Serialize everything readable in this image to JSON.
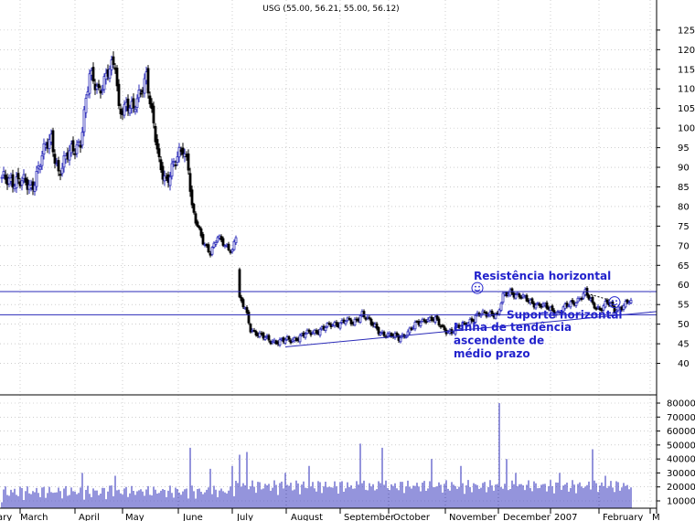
{
  "chart_data": {
    "type": "candlestick",
    "title": "USG (55.00, 56.21, 55.00, 56.12)",
    "colors": {
      "up": "#2a2ab8",
      "down": "#000000",
      "lines": "#2a2ab8",
      "annotations": "#2222cc",
      "grid": "#b0b0b0"
    },
    "grid": true,
    "price_axis": {
      "side": "right",
      "ylim": [
        35,
        128
      ],
      "ticks": [
        40,
        45,
        50,
        55,
        60,
        65,
        70,
        75,
        80,
        85,
        90,
        95,
        100,
        105,
        110,
        115,
        120,
        125
      ]
    },
    "volume_axis": {
      "side": "right",
      "ylim": [
        0,
        85000
      ],
      "ticks": [
        10000,
        20000,
        30000,
        40000,
        50000,
        60000,
        70000,
        80000
      ]
    },
    "x_axis": {
      "month_labels": [
        "ary",
        "March",
        "April",
        "May",
        "June",
        "July",
        "August",
        "September",
        "October",
        "November",
        "December",
        "2007",
        "February",
        "M"
      ]
    },
    "price_anchors": [
      {
        "d": 0,
        "p": 86.5
      },
      {
        "d": 8,
        "p": 87
      },
      {
        "d": 16,
        "p": 84.5
      },
      {
        "d": 22,
        "p": 93
      },
      {
        "d": 27,
        "p": 97
      },
      {
        "d": 31,
        "p": 89
      },
      {
        "d": 38,
        "p": 94
      },
      {
        "d": 43,
        "p": 97
      },
      {
        "d": 48,
        "p": 113
      },
      {
        "d": 53,
        "p": 110
      },
      {
        "d": 58,
        "p": 114
      },
      {
        "d": 62,
        "p": 116
      },
      {
        "d": 64,
        "p": 105
      },
      {
        "d": 68,
        "p": 106
      },
      {
        "d": 72,
        "p": 104
      },
      {
        "d": 76,
        "p": 110
      },
      {
        "d": 79,
        "p": 114
      },
      {
        "d": 82,
        "p": 103
      },
      {
        "d": 86,
        "p": 91
      },
      {
        "d": 90,
        "p": 87
      },
      {
        "d": 95,
        "p": 91
      },
      {
        "d": 99,
        "p": 95
      },
      {
        "d": 102,
        "p": 91
      },
      {
        "d": 104,
        "p": 80
      },
      {
        "d": 106,
        "p": 76
      },
      {
        "d": 110,
        "p": 71
      },
      {
        "d": 114,
        "p": 68.5
      },
      {
        "d": 118,
        "p": 72
      },
      {
        "d": 122,
        "p": 70
      },
      {
        "d": 126,
        "p": 69
      },
      {
        "d": 128,
        "p": 72.5
      },
      {
        "d": 130,
        "p": 56
      },
      {
        "d": 133,
        "p": 54
      },
      {
        "d": 136,
        "p": 49
      },
      {
        "d": 141,
        "p": 47
      },
      {
        "d": 146,
        "p": 46
      },
      {
        "d": 152,
        "p": 45.5
      },
      {
        "d": 158,
        "p": 46
      },
      {
        "d": 164,
        "p": 47
      },
      {
        "d": 170,
        "p": 48
      },
      {
        "d": 176,
        "p": 49
      },
      {
        "d": 182,
        "p": 50
      },
      {
        "d": 188,
        "p": 51
      },
      {
        "d": 192,
        "p": 50
      },
      {
        "d": 197,
        "p": 53
      },
      {
        "d": 202,
        "p": 50
      },
      {
        "d": 207,
        "p": 48
      },
      {
        "d": 212,
        "p": 47
      },
      {
        "d": 217,
        "p": 46.5
      },
      {
        "d": 222,
        "p": 48
      },
      {
        "d": 227,
        "p": 50
      },
      {
        "d": 232,
        "p": 51.5
      },
      {
        "d": 237,
        "p": 51
      },
      {
        "d": 241,
        "p": 49
      },
      {
        "d": 246,
        "p": 48
      },
      {
        "d": 251,
        "p": 49.5
      },
      {
        "d": 256,
        "p": 51
      },
      {
        "d": 262,
        "p": 52.5
      },
      {
        "d": 268,
        "p": 53
      },
      {
        "d": 271,
        "p": 52
      },
      {
        "d": 274,
        "p": 57
      },
      {
        "d": 278,
        "p": 58.5
      },
      {
        "d": 283,
        "p": 57
      },
      {
        "d": 288,
        "p": 56
      },
      {
        "d": 293,
        "p": 55
      },
      {
        "d": 299,
        "p": 54
      },
      {
        "d": 304,
        "p": 53
      },
      {
        "d": 309,
        "p": 54.5
      },
      {
        "d": 314,
        "p": 56
      },
      {
        "d": 319,
        "p": 58
      },
      {
        "d": 323,
        "p": 55
      },
      {
        "d": 327,
        "p": 54
      },
      {
        "d": 331,
        "p": 55.5
      },
      {
        "d": 335,
        "p": 53.5
      },
      {
        "d": 340,
        "p": 55
      },
      {
        "d": 344,
        "p": 56.1
      }
    ],
    "volume_spikes": [
      {
        "d": 44,
        "v": 30000
      },
      {
        "d": 60,
        "v": 21000
      },
      {
        "d": 62,
        "v": 28000
      },
      {
        "d": 103,
        "v": 48000
      },
      {
        "d": 114,
        "v": 33000
      },
      {
        "d": 126,
        "v": 35000
      },
      {
        "d": 130,
        "v": 43000
      },
      {
        "d": 134,
        "v": 45000
      },
      {
        "d": 155,
        "v": 30000
      },
      {
        "d": 168,
        "v": 35000
      },
      {
        "d": 196,
        "v": 51000
      },
      {
        "d": 208,
        "v": 48000
      },
      {
        "d": 235,
        "v": 40000
      },
      {
        "d": 251,
        "v": 35000
      },
      {
        "d": 272,
        "v": 80000
      },
      {
        "d": 276,
        "v": 40000
      },
      {
        "d": 281,
        "v": 30000
      },
      {
        "d": 305,
        "v": 30000
      },
      {
        "d": 323,
        "v": 47000
      },
      {
        "d": 330,
        "v": 28000
      }
    ],
    "horizontal_lines": [
      {
        "name": "Resistência horizontal",
        "price": 58.3
      },
      {
        "name": "Suporte horizontal",
        "price": 52.4
      }
    ],
    "trend_lines": [
      {
        "from": {
          "d": 155,
          "p": 44.2
        },
        "to": {
          "d": 358,
          "p": 53.2
        }
      },
      {
        "from": {
          "d": 320,
          "p": 57.8
        },
        "to": {
          "d": 335,
          "p": 55.8
        }
      }
    ],
    "annotations": [
      {
        "text": "Resistência horizontal",
        "anchor_d": 258,
        "anchor_p": 61.3
      },
      {
        "text": "Suporte horizontal",
        "anchor_d": 276,
        "anchor_p": 51.4
      },
      {
        "text": "Linha de tendência",
        "anchor_d": 247,
        "anchor_p": 48.3
      },
      {
        "text": "ascendente de",
        "anchor_d": 247,
        "anchor_p": 44.9
      },
      {
        "text": "médio prazo",
        "anchor_d": 247,
        "anchor_p": 41.5
      }
    ],
    "icons": [
      {
        "name": "smiley-icon",
        "d": 260,
        "p": 59.2
      },
      {
        "name": "smiley-icon",
        "d": 335,
        "p": 55.6
      }
    ]
  }
}
